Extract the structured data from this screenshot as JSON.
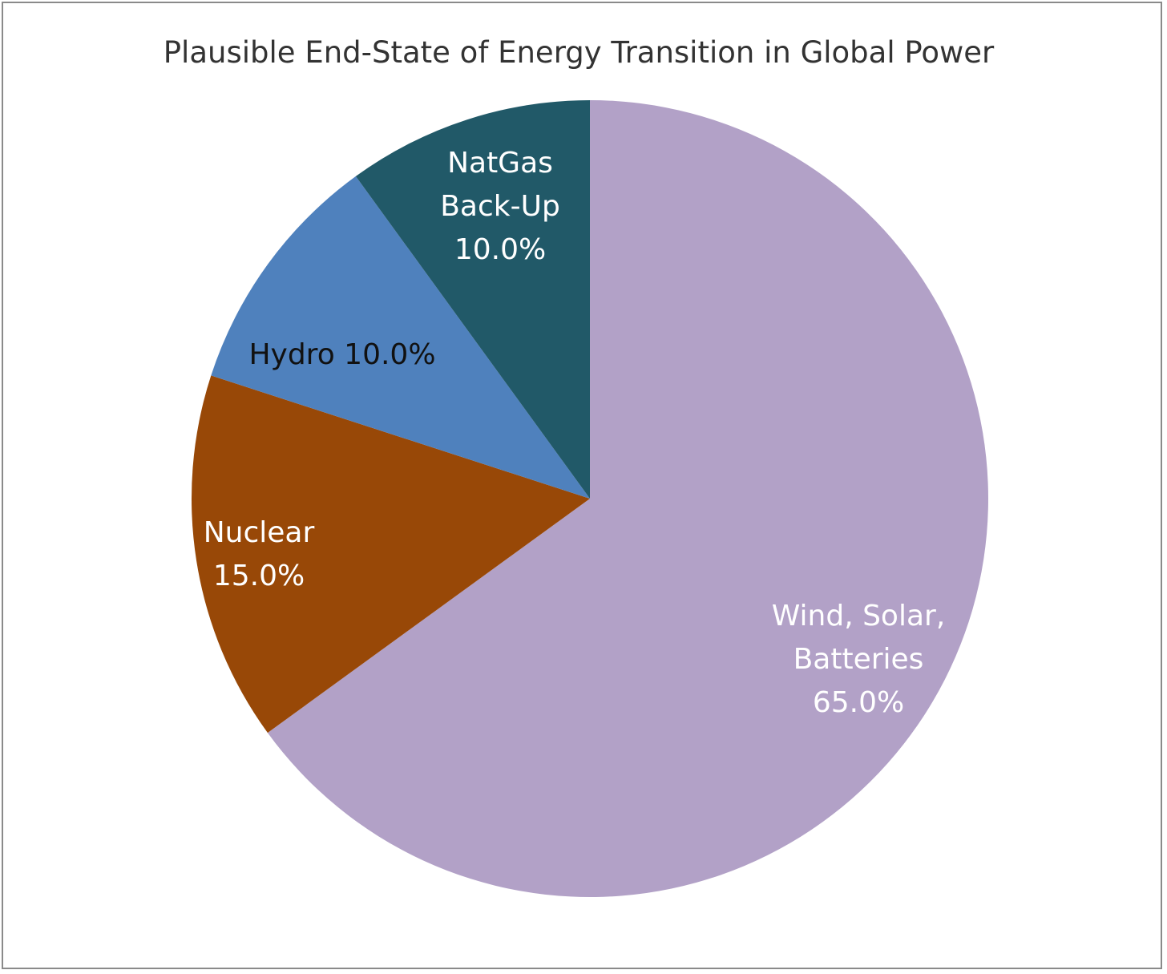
{
  "chart_data": {
    "type": "pie",
    "title": "Plausible End-State of Energy Transition in Global Power",
    "slices": [
      {
        "name": "Wind, Solar, Batteries",
        "value": 65.0,
        "color": "#b2a1c7",
        "label_lines": [
          "Wind, Solar,",
          "Batteries",
          "65.0%"
        ],
        "label_color": "#ffffff"
      },
      {
        "name": "Nuclear",
        "value": 15.0,
        "color": "#984807",
        "label_lines": [
          "Nuclear",
          "15.0%"
        ],
        "label_color": "#ffffff"
      },
      {
        "name": "Hydro",
        "value": 10.0,
        "color": "#4f81bd",
        "label_lines": [
          "Hydro 10.0%"
        ],
        "label_color": "#111111"
      },
      {
        "name": "NatGas Back-Up",
        "value": 10.0,
        "color": "#215968",
        "label_lines": [
          "NatGas",
          "Back-Up",
          "10.0%"
        ],
        "label_color": "#ffffff"
      }
    ]
  }
}
